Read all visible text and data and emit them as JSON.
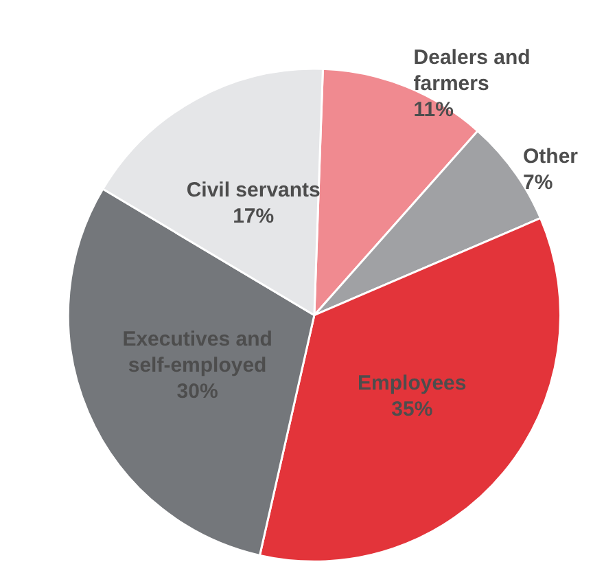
{
  "chart_data": {
    "type": "pie",
    "categories": [
      "Dealers and farmers",
      "Other",
      "Employees",
      "Executives and self-employed",
      "Civil servants"
    ],
    "values": [
      11,
      7,
      35,
      30,
      17
    ],
    "value_labels": [
      "11%",
      "7%",
      "35%",
      "30%",
      "17%"
    ],
    "colors": [
      "#f08a90",
      "#a0a1a4",
      "#e3343a",
      "#74777b",
      "#e5e6e8"
    ],
    "legend": false
  }
}
